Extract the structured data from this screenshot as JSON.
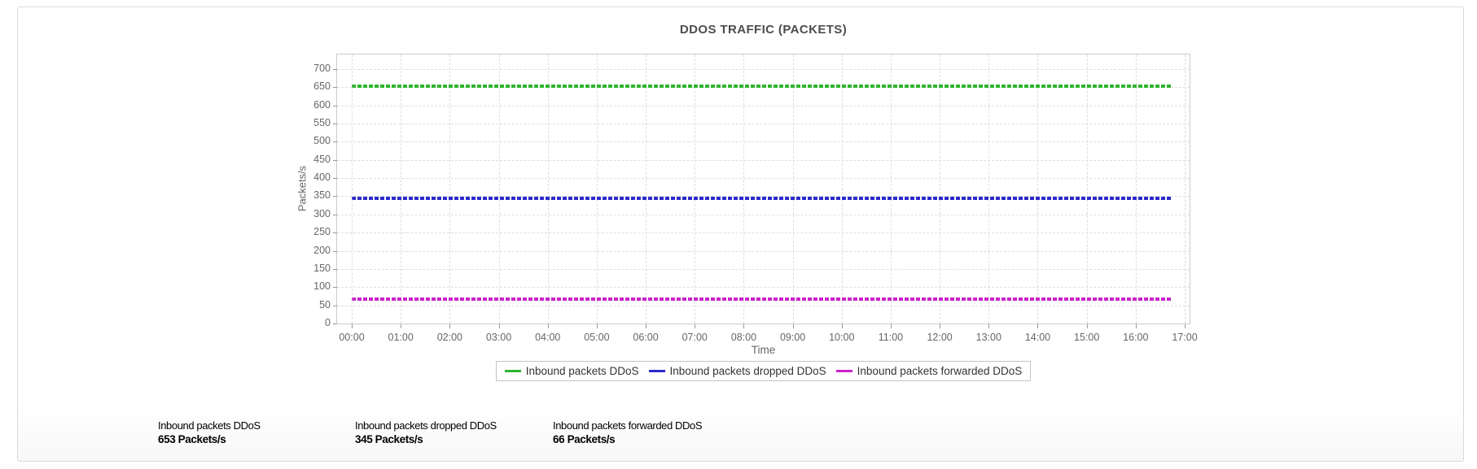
{
  "chart_data": {
    "type": "line",
    "title": "DDOS TRAFFIC (PACKETS)",
    "xlabel": "Time",
    "ylabel": "Packets/s",
    "x_ticks": [
      "00:00",
      "01:00",
      "02:00",
      "03:00",
      "04:00",
      "05:00",
      "06:00",
      "07:00",
      "08:00",
      "09:00",
      "10:00",
      "11:00",
      "12:00",
      "13:00",
      "14:00",
      "15:00",
      "16:00",
      "17:00"
    ],
    "y_ticks": [
      0,
      50,
      100,
      150,
      200,
      250,
      300,
      350,
      400,
      450,
      500,
      550,
      600,
      650,
      700
    ],
    "ylim": [
      0,
      740
    ],
    "grid": true,
    "legend_position": "bottom",
    "x_data_start": "00:00",
    "x_data_end": "16:45",
    "series": [
      {
        "name": "Inbound packets DDoS",
        "value": 653,
        "color": "#2db52d"
      },
      {
        "name": "Inbound packets dropped DDoS",
        "value": 345,
        "color": "#2a2acc"
      },
      {
        "name": "Inbound packets forwarded DDoS",
        "value": 66,
        "color": "#cc22cc"
      }
    ]
  },
  "stats": [
    {
      "label": "Inbound packets DDoS",
      "value": "653 Packets/s"
    },
    {
      "label": "Inbound packets dropped DDoS",
      "value": "345 Packets/s"
    },
    {
      "label": "Inbound packets forwarded DDoS",
      "value": "66 Packets/s"
    }
  ]
}
